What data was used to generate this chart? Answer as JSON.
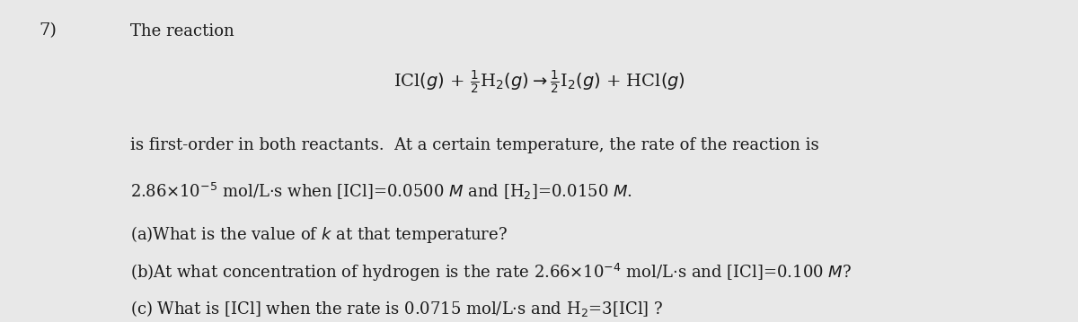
{
  "background_color": "#e8e8e8",
  "fig_width": 12.0,
  "fig_height": 3.59,
  "dpi": 100,
  "number": "7)",
  "title_text": "The reaction",
  "equation": "ICl$(g)$ + $\\frac{1}{2}$H$_2$$(g)$ $\\rightarrow$ $\\frac{1}{2}$I$_2$$(g)$ + HCl$(g)$",
  "body_text": "is first-order in both reactants. At a certain temperature, the rate of the reaction is\n2.86×10⁻⁵ mol/L·s when [ICl]=0.0500 Μ and [H₂]=0.0150 Μ.",
  "question_a": "(a)What is the value of $k$ at that temperature?",
  "question_b": "(b)At what concentration of hydrogen is the rate 2.66×10⁻⁴ mol/L·s and [ICl]=0.100 Μ?",
  "question_c": "(c) What is [ICl] when the rate is 0.0715 mol/L·s and H₂=3[ICl] ?",
  "font_size_main": 13,
  "font_size_number": 14,
  "text_color": "#1a1a1a"
}
